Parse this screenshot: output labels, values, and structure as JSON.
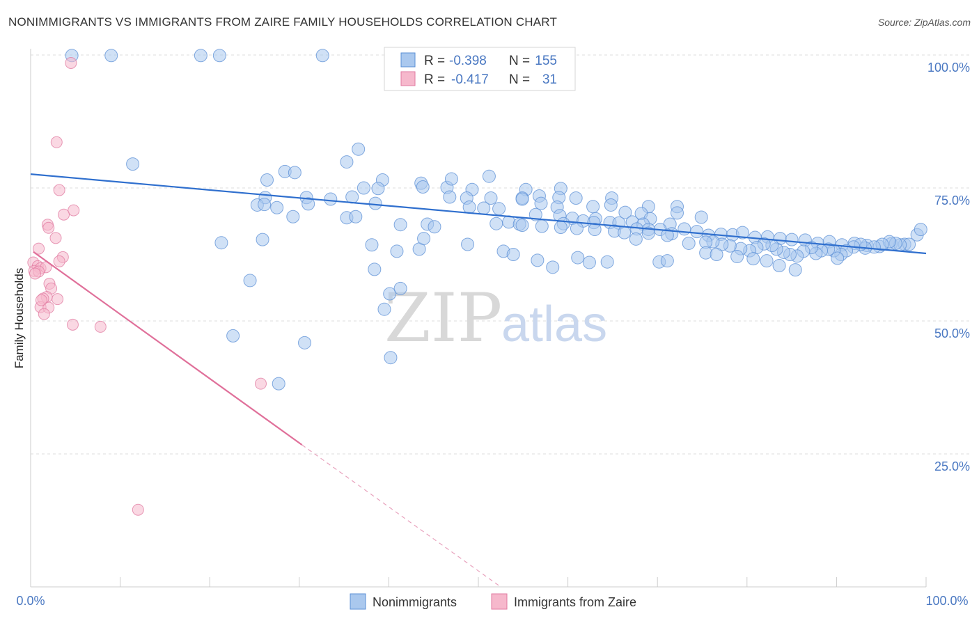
{
  "title": "NONIMMIGRANTS VS IMMIGRANTS FROM ZAIRE FAMILY HOUSEHOLDS CORRELATION CHART",
  "source": "Source: ZipAtlas.com",
  "watermark": {
    "zip": "ZIP",
    "atlas": "atlas"
  },
  "colors": {
    "blue": "#5b8fd6",
    "blue_fill": "#aac8ee",
    "pink": "#e07aa0",
    "pink_fill": "#f6b8cc",
    "tick": "#4a78c2"
  },
  "legend": {
    "blue": {
      "r_label": "R =",
      "r_value": "-0.398",
      "n_label": "N =",
      "n_value": "155"
    },
    "pink": {
      "r_label": "R =",
      "r_value": "-0.417",
      "n_label": "N =",
      "n_value": "31"
    }
  },
  "chart_data": {
    "type": "scatter",
    "ylabel": "Family Households",
    "xlim": [
      0,
      100
    ],
    "ylim": [
      0,
      102
    ],
    "x_tick_labels": [
      "0.0%",
      "100.0%"
    ],
    "y_ticks": [
      25,
      50,
      75,
      100
    ],
    "y_tick_labels": [
      "25.0%",
      "50.0%",
      "75.0%",
      "100.0%"
    ],
    "grid": "horizontal dashed",
    "legend_placement": "top-center",
    "series": [
      {
        "name": "Nonimmigrants",
        "color": "#5b8fd6",
        "trend": {
          "x": [
            0,
            100
          ],
          "y": [
            77.6,
            62.7
          ]
        },
        "points": [
          [
            4.6,
            99.9
          ],
          [
            9,
            99.9
          ],
          [
            19,
            99.9
          ],
          [
            21.1,
            99.9
          ],
          [
            32.6,
            99.9
          ],
          [
            11.4,
            79.5
          ],
          [
            36.6,
            82.3
          ],
          [
            35.3,
            79.9
          ],
          [
            28.4,
            78.1
          ],
          [
            29.5,
            77.9
          ],
          [
            26.4,
            76.5
          ],
          [
            39.3,
            76.5
          ],
          [
            43.6,
            75.9
          ],
          [
            43.8,
            75.2
          ],
          [
            46.5,
            75.1
          ],
          [
            49.3,
            74.7
          ],
          [
            37.2,
            75
          ],
          [
            38.8,
            74.9
          ],
          [
            55.3,
            74.7
          ],
          [
            59.2,
            74.9
          ],
          [
            47,
            76.7
          ],
          [
            51.2,
            77.2
          ],
          [
            26.2,
            73.2
          ],
          [
            30.8,
            73.2
          ],
          [
            33.5,
            72.9
          ],
          [
            35.9,
            73.3
          ],
          [
            46.8,
            73.3
          ],
          [
            48.7,
            73.1
          ],
          [
            51.4,
            73.1
          ],
          [
            54.9,
            73.1
          ],
          [
            56.8,
            73.5
          ],
          [
            59,
            73.2
          ],
          [
            60.9,
            73.1
          ],
          [
            64.9,
            73.1
          ],
          [
            31,
            72
          ],
          [
            49,
            71.4
          ],
          [
            50.6,
            71.2
          ],
          [
            52.3,
            71.1
          ],
          [
            54.9,
            72.9
          ],
          [
            57,
            72.1
          ],
          [
            58.8,
            71.4
          ],
          [
            62.8,
            71.5
          ],
          [
            64.8,
            71.8
          ],
          [
            69,
            71.5
          ],
          [
            72.2,
            71.5
          ],
          [
            25.3,
            71.8
          ],
          [
            26.1,
            71.9
          ],
          [
            27.5,
            71.3
          ],
          [
            38.5,
            72.1
          ],
          [
            56.4,
            70
          ],
          [
            59.1,
            69.8
          ],
          [
            60.5,
            69.3
          ],
          [
            63.1,
            69.2
          ],
          [
            66.4,
            70.4
          ],
          [
            68.2,
            70.2
          ],
          [
            69.2,
            69.2
          ],
          [
            72.2,
            70.3
          ],
          [
            74.9,
            69.5
          ],
          [
            29.3,
            69.6
          ],
          [
            35.3,
            69.4
          ],
          [
            52,
            68.3
          ],
          [
            53.4,
            68.6
          ],
          [
            54.6,
            68.2
          ],
          [
            59.5,
            68.3
          ],
          [
            61.7,
            68.8
          ],
          [
            62.9,
            68.5
          ],
          [
            64.7,
            68.5
          ],
          [
            65.7,
            68.4
          ],
          [
            67.2,
            68.6
          ],
          [
            68.4,
            68.2
          ],
          [
            71.4,
            68.2
          ],
          [
            41.3,
            68.1
          ],
          [
            44.3,
            68.2
          ],
          [
            45.1,
            67.7
          ],
          [
            54.9,
            68
          ],
          [
            57.1,
            67.8
          ],
          [
            59.2,
            67.6
          ],
          [
            61,
            67.4
          ],
          [
            63,
            67.2
          ],
          [
            65.2,
            66.9
          ],
          [
            66.3,
            66.6
          ],
          [
            67.7,
            67.3
          ],
          [
            69,
            67.2
          ],
          [
            70.3,
            67.2
          ],
          [
            71.6,
            66.4
          ],
          [
            73,
            67.3
          ],
          [
            74.4,
            66.8
          ],
          [
            75.7,
            66.1
          ],
          [
            77.1,
            66.3
          ],
          [
            78.4,
            66.2
          ],
          [
            79.5,
            66.6
          ],
          [
            80.9,
            65.7
          ],
          [
            82.3,
            65.8
          ],
          [
            83.7,
            65.5
          ],
          [
            85,
            65.3
          ],
          [
            86.5,
            65.2
          ],
          [
            87.9,
            64.6
          ],
          [
            89.2,
            64.9
          ],
          [
            90.6,
            64.3
          ],
          [
            92,
            64.6
          ],
          [
            93.4,
            64.2
          ],
          [
            94.8,
            64
          ],
          [
            96.1,
            64.5
          ],
          [
            97.6,
            64.4
          ],
          [
            99,
            66.2
          ],
          [
            99.4,
            67.2
          ],
          [
            98.1,
            64.4
          ],
          [
            97.1,
            64.3
          ],
          [
            96.6,
            64.6
          ],
          [
            95.9,
            64.9
          ],
          [
            95.1,
            64.4
          ],
          [
            94.2,
            63.9
          ],
          [
            93.2,
            63.7
          ],
          [
            92.7,
            64.4
          ],
          [
            91.9,
            63.9
          ],
          [
            91.1,
            63.2
          ],
          [
            90.5,
            62.5
          ],
          [
            89.7,
            63.2
          ],
          [
            89.1,
            63.5
          ],
          [
            88.3,
            63.2
          ],
          [
            87.7,
            62.7
          ],
          [
            87.2,
            63.8
          ],
          [
            86.3,
            63.1
          ],
          [
            85.6,
            62.2
          ],
          [
            84.8,
            62.5
          ],
          [
            84.1,
            62.9
          ],
          [
            83.3,
            63.5
          ],
          [
            82.8,
            64.2
          ],
          [
            81.9,
            64.5
          ],
          [
            81.1,
            63.8
          ],
          [
            80.3,
            63.2
          ],
          [
            79.3,
            63.6
          ],
          [
            78.1,
            64.1
          ],
          [
            77.2,
            64.4
          ],
          [
            76.2,
            64.9
          ],
          [
            75.4,
            64.8
          ],
          [
            73.5,
            64.6
          ],
          [
            71.1,
            66.1
          ],
          [
            69,
            66.5
          ],
          [
            67.6,
            65.4
          ],
          [
            70.2,
            61.1
          ],
          [
            71.1,
            61.3
          ],
          [
            75.4,
            62.8
          ],
          [
            76.6,
            62.5
          ],
          [
            78.9,
            62.1
          ],
          [
            80.7,
            61.7
          ],
          [
            82.2,
            61.3
          ],
          [
            83.6,
            60.4
          ],
          [
            85.4,
            59.6
          ],
          [
            90.1,
            61.8
          ],
          [
            21.3,
            64.7
          ],
          [
            25.9,
            65.3
          ],
          [
            38.1,
            64.3
          ],
          [
            40.9,
            63.1
          ],
          [
            43.4,
            63.5
          ],
          [
            48.8,
            64.4
          ],
          [
            52.8,
            63.1
          ],
          [
            53.9,
            62.5
          ],
          [
            56.6,
            61.4
          ],
          [
            58.3,
            60.1
          ],
          [
            61.1,
            61.9
          ],
          [
            62.4,
            61
          ],
          [
            64.4,
            61.1
          ],
          [
            38.4,
            59.7
          ],
          [
            24.5,
            57.6
          ],
          [
            40.1,
            55.1
          ],
          [
            41.3,
            56.1
          ],
          [
            39.5,
            52.2
          ],
          [
            22.6,
            47.2
          ],
          [
            30.6,
            45.9
          ],
          [
            40.2,
            43.1
          ],
          [
            27.7,
            38.2
          ],
          [
            43.9,
            65.5
          ],
          [
            36.3,
            69.6
          ]
        ]
      },
      {
        "name": "Immigrants from Zaire",
        "color": "#e07aa0",
        "trend": {
          "x": [
            0.3,
            30.3
          ],
          "y": [
            63,
            26.7
          ]
        },
        "trend_dashed": {
          "x": [
            30.3,
            52.5
          ],
          "y": [
            26.7,
            0
          ]
        },
        "points": [
          [
            4.5,
            98.5
          ],
          [
            2.9,
            83.6
          ],
          [
            3.2,
            74.6
          ],
          [
            4.8,
            70.8
          ],
          [
            3.7,
            70
          ],
          [
            1.9,
            68.1
          ],
          [
            2,
            67.5
          ],
          [
            2.8,
            65.6
          ],
          [
            0.9,
            63.6
          ],
          [
            3.6,
            62
          ],
          [
            3.2,
            61.2
          ],
          [
            0.3,
            61
          ],
          [
            0.8,
            60.3
          ],
          [
            1.1,
            59.9
          ],
          [
            1.7,
            60.1
          ],
          [
            0.4,
            59.4
          ],
          [
            0.9,
            59.3
          ],
          [
            0.5,
            58.9
          ],
          [
            2.1,
            57
          ],
          [
            2.3,
            56.1
          ],
          [
            3,
            54.1
          ],
          [
            1.8,
            54.5
          ],
          [
            1.4,
            54.2
          ],
          [
            1.1,
            52.6
          ],
          [
            2,
            52.5
          ],
          [
            1.5,
            51.3
          ],
          [
            4.7,
            49.3
          ],
          [
            7.8,
            48.9
          ],
          [
            25.7,
            38.2
          ],
          [
            12,
            14.5
          ],
          [
            1.2,
            53.9
          ]
        ]
      }
    ]
  },
  "bottom_legend": [
    {
      "label": "Nonimmigrants"
    },
    {
      "label": "Immigrants from Zaire"
    }
  ]
}
